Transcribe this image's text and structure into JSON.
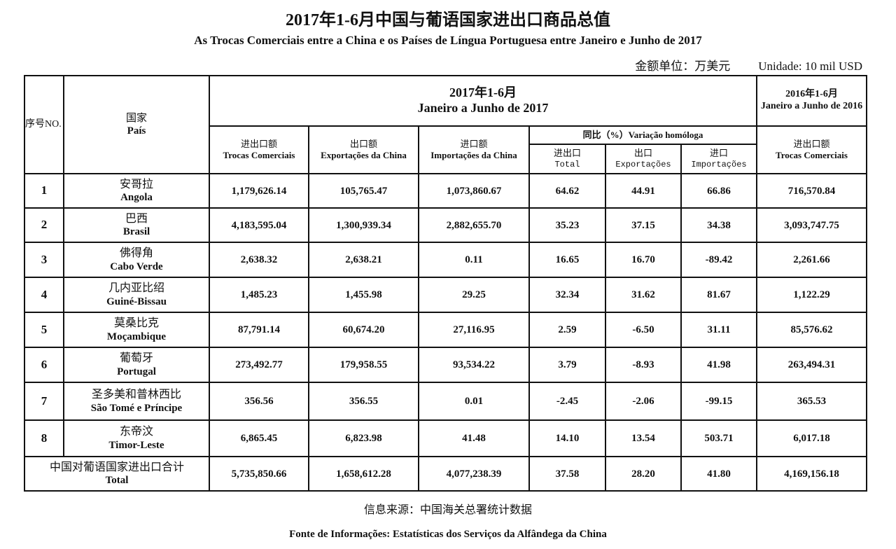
{
  "title_cn": "2017年1-6月中国与葡语国家进出口商品总值",
  "title_pt": "As Trocas Comerciais entre a China e os Países de Língua Portuguesa entre Janeiro e Junho de  2017",
  "unit_cn": "金额单位：万美元",
  "unit_pt": "Unidade: 10 mil USD",
  "headers": {
    "no": "序号NO.",
    "country_cn": "国家",
    "country_pt": "País",
    "period2017_cn": "2017年1-6月",
    "period2017_pt": "Janeiro a Junho de 2017",
    "period2016_cn": "2016年1-6月",
    "period2016_pt": "Janeiro a Junho de 2016",
    "trade_cn": "进出口额",
    "trade_pt": "Trocas Comerciais",
    "exp_cn": "出口额",
    "exp_pt": "Exportações da China",
    "imp_cn": "进口额",
    "imp_pt": "Importações da China",
    "yoy": "同比（%）Variação homóloga",
    "yoy_total_cn": "进出口",
    "yoy_total_pt": "Total",
    "yoy_exp_cn": "出口",
    "yoy_exp_pt": "Exportações",
    "yoy_imp_cn": "进口",
    "yoy_imp_pt": "Importações",
    "trade2016_cn": "进出口额",
    "trade2016_pt": "Trocas Comerciais"
  },
  "rows": [
    {
      "no": "1",
      "cn": "安哥拉",
      "pt": "Angola",
      "trade": "1,179,626.14",
      "exp": "105,765.47",
      "imp": "1,073,860.67",
      "yt": "64.62",
      "ye": "44.91",
      "yi": "66.86",
      "t2016": "716,570.84"
    },
    {
      "no": "2",
      "cn": "巴西",
      "pt": "Brasil",
      "trade": "4,183,595.04",
      "exp": "1,300,939.34",
      "imp": "2,882,655.70",
      "yt": "35.23",
      "ye": "37.15",
      "yi": "34.38",
      "t2016": "3,093,747.75"
    },
    {
      "no": "3",
      "cn": "佛得角",
      "pt": "Cabo Verde",
      "trade": "2,638.32",
      "exp": "2,638.21",
      "imp": "0.11",
      "yt": "16.65",
      "ye": "16.70",
      "yi": "-89.42",
      "t2016": "2,261.66"
    },
    {
      "no": "4",
      "cn": "几内亚比绍",
      "pt": "Guiné-Bissau",
      "trade": "1,485.23",
      "exp": "1,455.98",
      "imp": "29.25",
      "yt": "32.34",
      "ye": "31.62",
      "yi": "81.67",
      "t2016": "1,122.29"
    },
    {
      "no": "5",
      "cn": "莫桑比克",
      "pt": "Moçambique",
      "trade": "87,791.14",
      "exp": "60,674.20",
      "imp": "27,116.95",
      "yt": "2.59",
      "ye": "-6.50",
      "yi": "31.11",
      "t2016": "85,576.62"
    },
    {
      "no": "6",
      "cn": "葡萄牙",
      "pt": "Portugal",
      "trade": "273,492.77",
      "exp": "179,958.55",
      "imp": "93,534.22",
      "yt": "3.79",
      "ye": "-8.93",
      "yi": "41.98",
      "t2016": "263,494.31"
    },
    {
      "no": "7",
      "cn": "圣多美和普林西比",
      "pt": "São Tomé e Príncipe",
      "trade": "356.56",
      "exp": "356.55",
      "imp": "0.01",
      "yt": "-2.45",
      "ye": "-2.06",
      "yi": "-99.15",
      "t2016": "365.53"
    },
    {
      "no": "8",
      "cn": "东帝汶",
      "pt": "Timor-Leste",
      "trade": "6,865.45",
      "exp": "6,823.98",
      "imp": "41.48",
      "yt": "14.10",
      "ye": "13.54",
      "yi": "503.71",
      "t2016": "6,017.18"
    }
  ],
  "total": {
    "cn": "中国对葡语国家进出口合计",
    "pt": "Total",
    "trade": "5,735,850.66",
    "exp": "1,658,612.28",
    "imp": "4,077,238.39",
    "yt": "37.58",
    "ye": "28.20",
    "yi": "41.80",
    "t2016": "4,169,156.18"
  },
  "source_cn": "信息来源：中国海关总署统计数据",
  "source_pt": "Fonte de Informações: Estatísticas dos Serviços da Alfândega da China"
}
